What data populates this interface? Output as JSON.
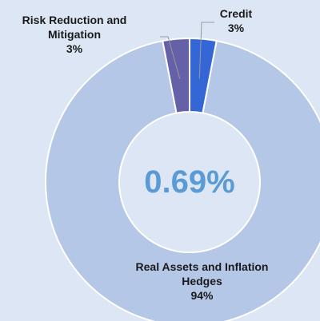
{
  "chart_data": {
    "type": "donut",
    "categories": [
      "Credit",
      "Real Assets and Inflation Hedges",
      "Risk Reduction and Mitigation"
    ],
    "values": [
      3,
      94,
      3
    ],
    "value_labels": [
      "3%",
      "94%",
      "3%"
    ],
    "colors": [
      "#3566d6",
      "#b4c7e7",
      "#6461a8"
    ],
    "center_label": "0.69%"
  }
}
